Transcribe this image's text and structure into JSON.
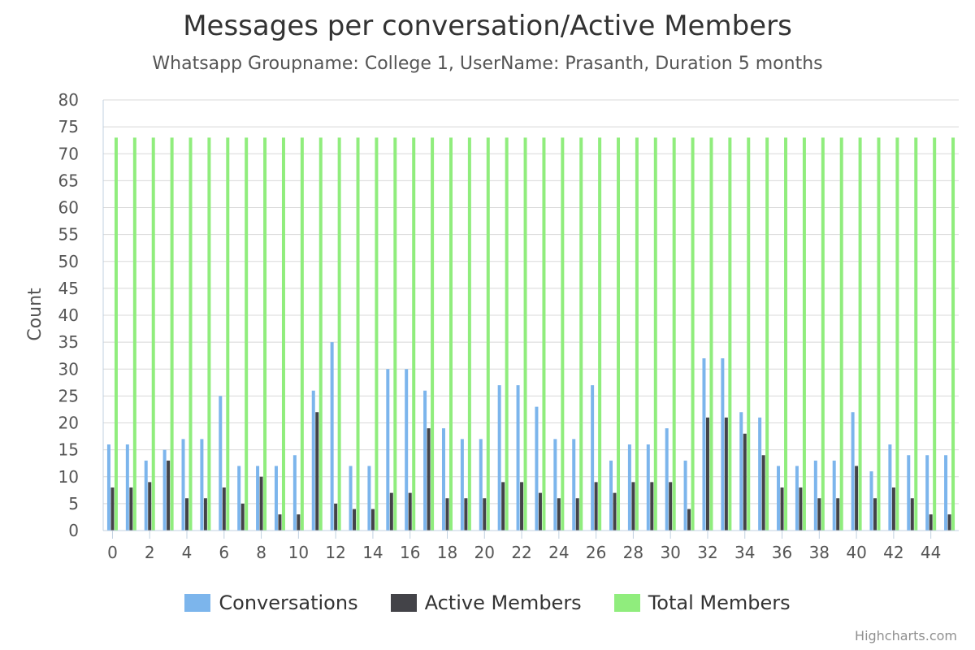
{
  "chart_data": {
    "type": "bar",
    "title": "Messages per conversation/Active Members",
    "subtitle": "Whatsapp Groupname: College 1, UserName: Prasanth, Duration 5 months",
    "xlabel": "",
    "ylabel": "Count",
    "ylim": [
      0,
      80
    ],
    "ytick_step": 5,
    "xtick_step": 2,
    "grid": true,
    "legend_position": "bottom",
    "categories": [
      0,
      1,
      2,
      3,
      4,
      5,
      6,
      7,
      8,
      9,
      10,
      11,
      12,
      13,
      14,
      15,
      16,
      17,
      18,
      19,
      20,
      21,
      22,
      23,
      24,
      25,
      26,
      27,
      28,
      29,
      30,
      31,
      32,
      33,
      34,
      35,
      36,
      37,
      38,
      39,
      40,
      41,
      42,
      43,
      44,
      45
    ],
    "series": [
      {
        "name": "Conversations",
        "color": "#7cb5ec",
        "values": [
          16,
          16,
          13,
          15,
          17,
          17,
          25,
          12,
          12,
          12,
          14,
          26,
          35,
          12,
          12,
          30,
          30,
          26,
          19,
          17,
          17,
          27,
          27,
          23,
          17,
          17,
          27,
          13,
          16,
          16,
          19,
          13,
          32,
          32,
          22,
          21,
          12,
          12,
          13,
          13,
          22,
          11,
          16,
          14,
          14,
          14
        ]
      },
      {
        "name": "Active Members",
        "color": "#434348",
        "values": [
          8,
          8,
          9,
          13,
          6,
          6,
          8,
          5,
          10,
          3,
          3,
          22,
          5,
          4,
          4,
          7,
          7,
          19,
          6,
          6,
          6,
          9,
          9,
          7,
          6,
          6,
          9,
          7,
          9,
          9,
          9,
          4,
          21,
          21,
          18,
          14,
          8,
          8,
          6,
          6,
          12,
          6,
          8,
          6,
          3,
          3
        ]
      },
      {
        "name": "Total Members",
        "color": "#90ed7d",
        "values": [
          73,
          73,
          73,
          73,
          73,
          73,
          73,
          73,
          73,
          73,
          73,
          73,
          73,
          73,
          73,
          73,
          73,
          73,
          73,
          73,
          73,
          73,
          73,
          73,
          73,
          73,
          73,
          73,
          73,
          73,
          73,
          73,
          73,
          73,
          73,
          73,
          73,
          73,
          73,
          73,
          73,
          73,
          73,
          73,
          73,
          73
        ]
      }
    ]
  },
  "credits": "Highcharts.com"
}
